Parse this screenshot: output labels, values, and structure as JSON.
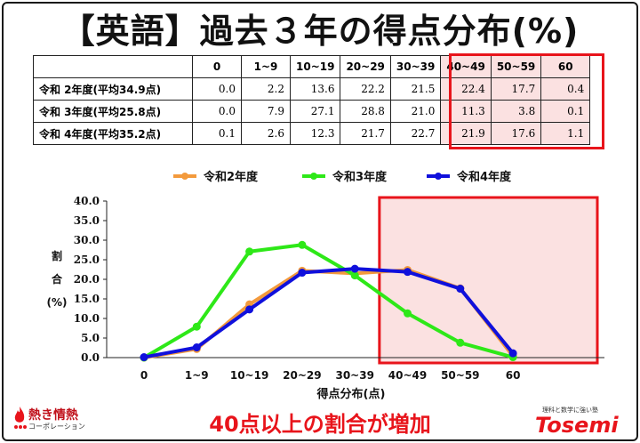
{
  "title": "【英語】過去３年の得点分布(%)",
  "table": {
    "headers": [
      "0",
      "1~9",
      "10~19",
      "20~29",
      "30~39",
      "40~49",
      "50~59",
      "60"
    ],
    "rows": [
      {
        "label": "令和 2年度(平均34.9点)",
        "values": [
          "0.0",
          "2.2",
          "13.6",
          "22.2",
          "21.5",
          "22.4",
          "17.7",
          "0.4"
        ]
      },
      {
        "label": "令和 3年度(平均25.8点)",
        "values": [
          "0.0",
          "7.9",
          "27.1",
          "28.8",
          "21.0",
          "11.3",
          "3.8",
          "0.1"
        ]
      },
      {
        "label": "令和 4年度(平均35.2点)",
        "values": [
          "0.1",
          "2.6",
          "12.3",
          "21.7",
          "22.7",
          "21.9",
          "17.6",
          "1.1"
        ]
      }
    ]
  },
  "chart_data": {
    "type": "line",
    "categories": [
      "0",
      "1~9",
      "10~19",
      "20~29",
      "30~39",
      "40~49",
      "50~59",
      "60"
    ],
    "series": [
      {
        "name": "令和2年度",
        "color": "#f39a3c",
        "values": [
          0.0,
          2.2,
          13.6,
          22.2,
          21.5,
          22.4,
          17.7,
          0.4
        ]
      },
      {
        "name": "令和3年度",
        "color": "#2ee818",
        "values": [
          0.0,
          7.9,
          27.1,
          28.8,
          21.0,
          11.3,
          3.8,
          0.1
        ]
      },
      {
        "name": "令和4年度",
        "color": "#1010dc",
        "values": [
          0.1,
          2.6,
          12.3,
          21.7,
          22.7,
          21.9,
          17.6,
          1.1
        ]
      }
    ],
    "y_ticks": [
      "0.0",
      "5.0",
      "10.0",
      "15.0",
      "20.0",
      "25.0",
      "30.0",
      "35.0",
      "40.0"
    ],
    "ylim": [
      0,
      40
    ],
    "ylabel": [
      "割",
      "合",
      "(%)"
    ],
    "xlabel": "得点分布(点)",
    "legend_position": "top",
    "grid": false,
    "highlight_categories": [
      "40~49",
      "50~59",
      "60"
    ],
    "highlight_color": "#e8141b"
  },
  "footer_note": "40点以上の割合が増加",
  "logo_left": {
    "name": "熱き情熱",
    "sub": "コーポレーション"
  },
  "logo_right": {
    "name": "Tosemi",
    "sub": "理科と数学に強い塾"
  }
}
